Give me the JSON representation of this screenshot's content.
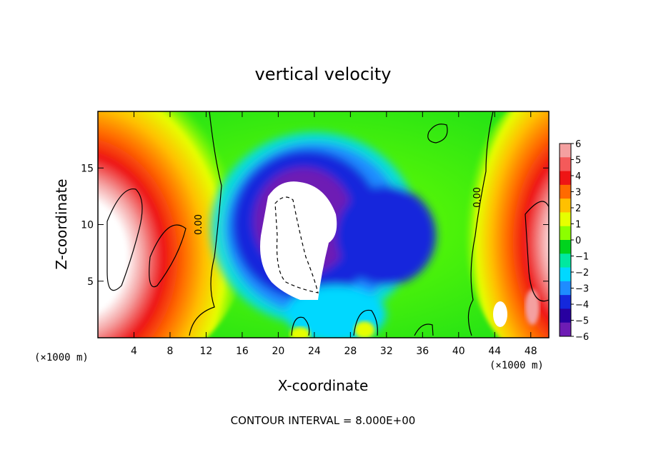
{
  "chart_data": {
    "type": "heatmap",
    "title": "vertical velocity",
    "xlabel": "X-coordinate",
    "ylabel": "Z-coordinate",
    "x_unit_label": "(×1000 m)",
    "y_unit_label": "(×1000 m)",
    "xlim": [
      0,
      50
    ],
    "ylim": [
      0,
      20
    ],
    "x_ticks": [
      4,
      8,
      12,
      16,
      20,
      24,
      28,
      32,
      36,
      40,
      44,
      48
    ],
    "x_tick_labels": [
      "4",
      "8",
      "12",
      "16",
      "20",
      "24",
      "28",
      "32",
      "36",
      "40",
      "44",
      "48"
    ],
    "y_ticks": [
      5,
      10,
      15
    ],
    "y_tick_labels": [
      "5",
      "10",
      "15"
    ],
    "colorbar": {
      "min": -6,
      "max": 6,
      "ticks": [
        6,
        5,
        4,
        3,
        2,
        1,
        0,
        -1,
        -2,
        -3,
        -4,
        -5,
        -6
      ],
      "tick_labels": [
        "6",
        "5",
        "4",
        "3",
        "2",
        "1",
        "0",
        "−1",
        "−2",
        "−3",
        "−4",
        "−5",
        "−6"
      ],
      "colors": [
        "#f4a0a0",
        "#f45a5a",
        "#ee1515",
        "#ff6a00",
        "#ffc000",
        "#e6ff00",
        "#8cff00",
        "#00d31e",
        "#00e8a0",
        "#00d8ff",
        "#1e8cff",
        "#1428dc",
        "#2800a0",
        "#6e1cb4"
      ]
    },
    "contour_labels": [
      {
        "text": "0.00",
        "x": 11.5,
        "y": 10.0
      },
      {
        "text": "0.00",
        "x": 42.4,
        "y": 12.4
      }
    ],
    "contour_interval_text": "CONTOUR INTERVAL = 8.000E+00",
    "features": [
      {
        "kind": "updraft",
        "x": 4,
        "z": 11,
        "value": 6
      },
      {
        "kind": "downdraft",
        "x": 24,
        "z": 10,
        "value": -6
      },
      {
        "kind": "updraft",
        "x": 48,
        "z": 8,
        "value": 6
      }
    ]
  }
}
